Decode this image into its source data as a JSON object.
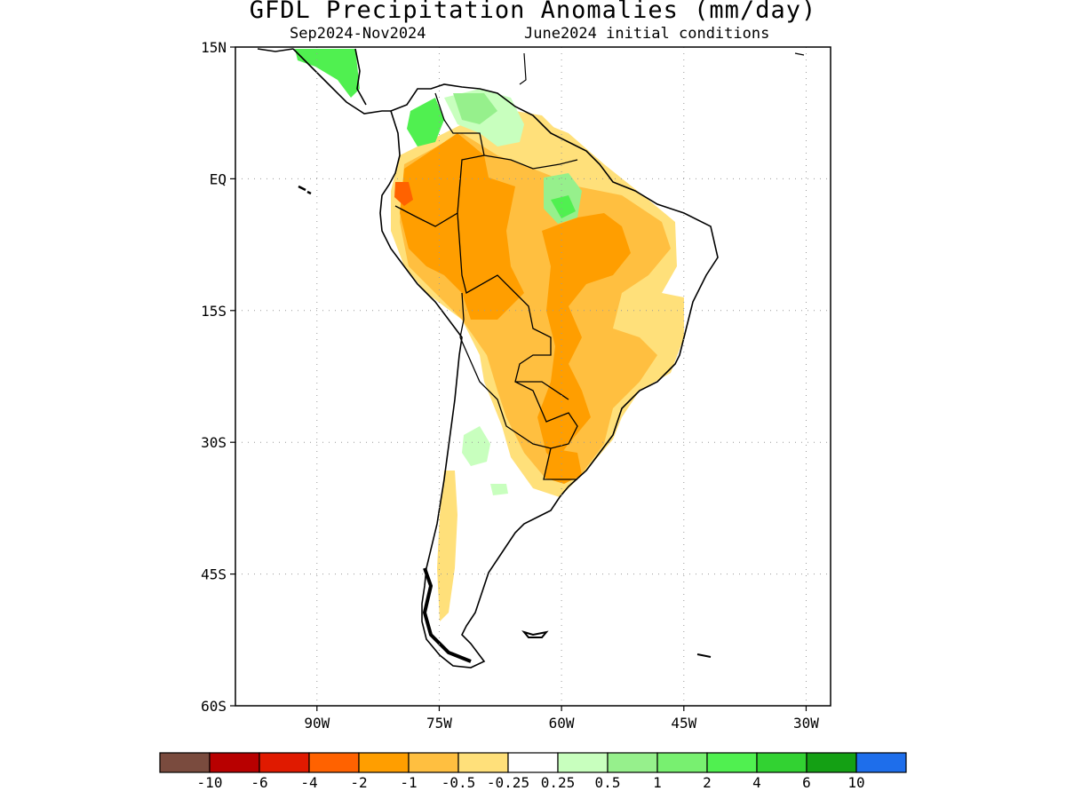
{
  "title": "GFDL Precipitation Anomalies (mm/day)",
  "subtitle_period": "Sep2024-Nov2024",
  "subtitle_init": "June2024 initial conditions",
  "map": {
    "lon_range": [
      -100,
      -27
    ],
    "lat_range": [
      -60,
      15
    ],
    "lat_ticks": [
      {
        "value": 15,
        "label": "15N"
      },
      {
        "value": 0,
        "label": "EQ"
      },
      {
        "value": -15,
        "label": "15S"
      },
      {
        "value": -30,
        "label": "30S"
      },
      {
        "value": -45,
        "label": "45S"
      },
      {
        "value": -60,
        "label": "60S"
      }
    ],
    "lon_ticks": [
      {
        "value": -90,
        "label": "90W"
      },
      {
        "value": -75,
        "label": "75W"
      },
      {
        "value": -60,
        "label": "60W"
      },
      {
        "value": -45,
        "label": "45W"
      },
      {
        "value": -30,
        "label": "30W"
      }
    ],
    "grid": "dotted"
  },
  "colorbar": {
    "colors": [
      "#7a4b3e",
      "#b80000",
      "#e01a00",
      "#ff6200",
      "#ff9e00",
      "#ffbf40",
      "#ffe07a",
      "#ffffff",
      "#c8ffbe",
      "#96f08c",
      "#78f070",
      "#50f050",
      "#32d232",
      "#14a014",
      "#1e6eeb"
    ],
    "labels": [
      "-10",
      "-6",
      "-4",
      "-2",
      "-1",
      "-0.5",
      "-0.25",
      "0.25",
      "0.5",
      "1",
      "2",
      "4",
      "6",
      "10"
    ]
  },
  "anomaly_levels": {
    "dry_moderate": "#ffe07a",
    "dry_light": "#ffbf40",
    "dry_strong": "#ff9e00",
    "dry_severe": "#ff6200",
    "wet_light": "#c8ffbe",
    "wet_moderate": "#96f08c",
    "wet_strong": "#50f050"
  }
}
